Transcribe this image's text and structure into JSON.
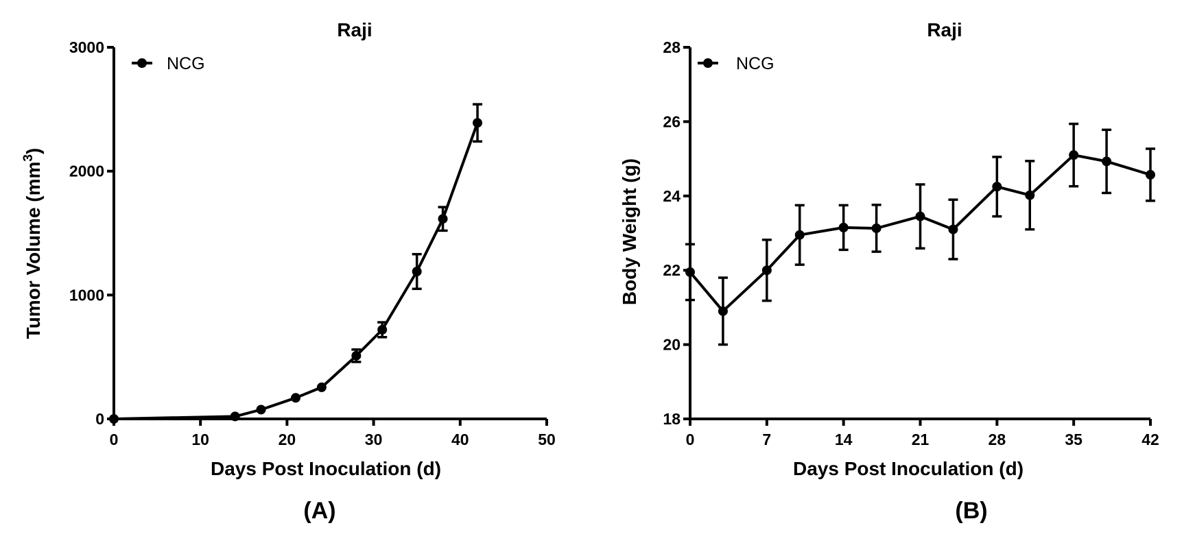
{
  "chart_data": [
    {
      "type": "line",
      "id": "tumor",
      "title": "Raji",
      "xlabel": "Days Post Inoculation (d)",
      "ylabel_main": "Tumor Volume (mm",
      "ylabel_sup": "3",
      "ylabel_end": ")",
      "xlim": [
        0,
        50
      ],
      "ylim": [
        0,
        3000
      ],
      "xticks": [
        0,
        10,
        20,
        30,
        40,
        50
      ],
      "yticks": [
        0,
        1000,
        2000,
        3000
      ],
      "panel_label": "(A)",
      "legend": {
        "position": "top-left"
      },
      "series": [
        {
          "name": "NCG",
          "x": [
            0,
            14,
            17,
            21,
            24,
            28,
            31,
            35,
            38,
            42
          ],
          "y": [
            0,
            20,
            75,
            170,
            255,
            510,
            720,
            1190,
            1615,
            2390
          ],
          "err": [
            0,
            0,
            0,
            0,
            0,
            50,
            60,
            140,
            95,
            150
          ]
        }
      ]
    },
    {
      "type": "line",
      "id": "weight",
      "title": "Raji",
      "xlabel": "Days Post Inoculation (d)",
      "ylabel": "Body Weight (g)",
      "xlim": [
        0,
        42
      ],
      "ylim": [
        18,
        28
      ],
      "xticks": [
        0,
        7,
        14,
        21,
        28,
        35,
        42
      ],
      "yticks": [
        18,
        20,
        22,
        24,
        26,
        28
      ],
      "panel_label": "(B)",
      "legend": {
        "position": "top-left"
      },
      "series": [
        {
          "name": "NCG",
          "x": [
            0,
            3,
            7,
            10,
            14,
            17,
            21,
            24,
            28,
            31,
            35,
            38,
            42
          ],
          "y": [
            21.95,
            20.9,
            22.0,
            22.95,
            23.15,
            23.13,
            23.45,
            23.1,
            24.25,
            24.02,
            25.1,
            24.93,
            24.57
          ],
          "err": [
            0.75,
            0.9,
            0.82,
            0.8,
            0.6,
            0.63,
            0.86,
            0.8,
            0.8,
            0.92,
            0.84,
            0.85,
            0.7
          ]
        }
      ]
    }
  ]
}
